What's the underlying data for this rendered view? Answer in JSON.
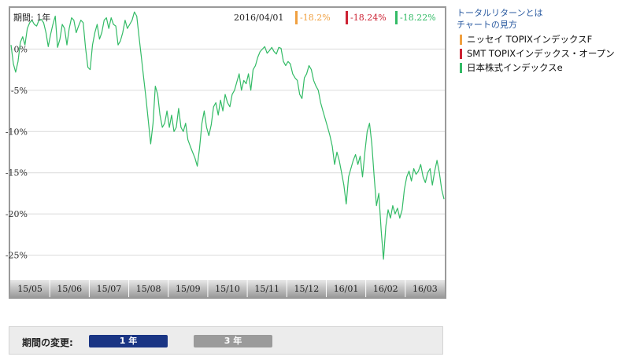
{
  "chart_header": {
    "period": "期間: 1年",
    "date": "2016/04/01",
    "returns": [
      {
        "value": "-18.2%",
        "color": "#f0a040"
      },
      {
        "value": "-18.24%",
        "color": "#cc2233"
      },
      {
        "value": "-18.22%",
        "color": "#33bb66"
      }
    ]
  },
  "links": {
    "total_return": "トータルリターンとは",
    "how_to_read": "チャートの見方"
  },
  "legend": [
    {
      "label": "ニッセイ TOPIXインデックスF",
      "color": "#f0a040"
    },
    {
      "label": "SMT TOPIXインデックス・オープン",
      "color": "#cc2233"
    },
    {
      "label": "日本株式インデックスe",
      "color": "#33bb66"
    }
  ],
  "period_selector": {
    "label": "期間の変更:",
    "options": [
      {
        "label": "1 年",
        "active": true
      },
      {
        "label": "3 年",
        "active": false
      }
    ]
  },
  "chart_data": {
    "type": "line",
    "ylim": [
      -28,
      5
    ],
    "y_ticks": [
      0,
      -5,
      -10,
      -15,
      -20,
      -25
    ],
    "y_tick_labels": [
      "0%",
      "-5%",
      "-10%",
      "-15%",
      "-20%",
      "-25%"
    ],
    "x_ticks": [
      "15/05",
      "15/06",
      "15/07",
      "15/08",
      "15/09",
      "15/10",
      "15/11",
      "15/12",
      "16/01",
      "16/02",
      "16/03"
    ],
    "grid": true,
    "series": [
      {
        "color": "#33bb66",
        "values": [
          0.5,
          -1.8,
          -2.8,
          -1.5,
          0.8,
          1.5,
          0.5,
          2.5,
          3.2,
          3.5,
          3.0,
          2.8,
          3.5,
          3.6,
          3.2,
          2.0,
          0.3,
          1.8,
          3.0,
          4.0,
          0.2,
          1.2,
          3.0,
          2.5,
          0.5,
          2.5,
          3.8,
          3.5,
          2.0,
          2.8,
          3.5,
          3.2,
          0.2,
          -2.2,
          -2.5,
          0.5,
          2.0,
          3.0,
          1.2,
          2.0,
          3.5,
          3.8,
          2.5,
          3.8,
          3.0,
          2.8,
          0.5,
          1.0,
          2.0,
          3.5,
          2.5,
          3.0,
          3.5,
          4.5,
          4.0,
          1.5,
          -1.0,
          -3.5,
          -6.0,
          -8.8,
          -11.5,
          -9.0,
          -4.5,
          -5.5,
          -8.0,
          -9.5,
          -9.0,
          -7.5,
          -9.5,
          -8.0,
          -10.0,
          -9.5,
          -7.2,
          -9.5,
          -10.0,
          -9.0,
          -11.0,
          -11.8,
          -12.5,
          -13.2,
          -14.2,
          -12.0,
          -9.0,
          -7.5,
          -9.5,
          -10.5,
          -9.2,
          -7.0,
          -6.5,
          -8.0,
          -6.2,
          -7.5,
          -5.5,
          -6.5,
          -7.0,
          -5.5,
          -5.0,
          -4.0,
          -3.0,
          -5.0,
          -3.8,
          -4.2,
          -3.0,
          -5.0,
          -2.5,
          -2.0,
          -1.0,
          -0.3,
          0.0,
          0.3,
          -0.5,
          -0.2,
          0.2,
          -0.3,
          -0.6,
          0.2,
          0.1,
          -1.5,
          -2.0,
          -1.5,
          -1.8,
          -3.0,
          -3.5,
          -3.8,
          -5.5,
          -6.0,
          -3.5,
          -3.0,
          -2.0,
          -2.5,
          -3.8,
          -4.5,
          -5.0,
          -6.5,
          -7.5,
          -8.5,
          -9.5,
          -10.5,
          -11.8,
          -14.0,
          -12.5,
          -13.5,
          -15.0,
          -16.5,
          -18.8,
          -15.5,
          -14.5,
          -13.5,
          -12.8,
          -14.0,
          -13.0,
          -15.5,
          -12.5,
          -10.0,
          -9.0,
          -11.5,
          -15.5,
          -19.0,
          -17.5,
          -22.0,
          -25.5,
          -21.5,
          -19.5,
          -20.5,
          -19.0,
          -20.0,
          -19.3,
          -20.5,
          -19.5,
          -17.0,
          -15.5,
          -14.8,
          -16.0,
          -14.5,
          -15.2,
          -14.8,
          -14.0,
          -15.5,
          -16.2,
          -15.0,
          -14.5,
          -16.5,
          -14.8,
          -13.5,
          -15.0,
          -17.0,
          -18.2
        ]
      }
    ]
  }
}
